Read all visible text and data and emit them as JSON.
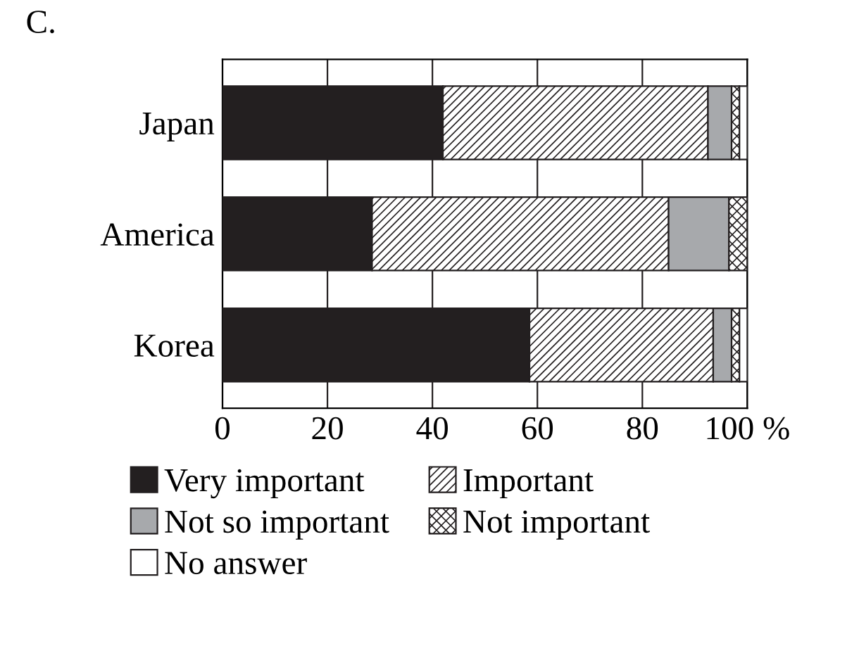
{
  "chart_data": {
    "type": "bar",
    "orientation": "horizontal",
    "stacked": true,
    "title": "C.",
    "categories": [
      "Japan",
      "America",
      "Korea"
    ],
    "series": [
      {
        "name": "Very important",
        "color": "#231f20",
        "values": [
          42,
          28.5,
          58.5
        ]
      },
      {
        "name": "Important",
        "color": "#231f20",
        "values": [
          50.5,
          56.5,
          35
        ]
      },
      {
        "name": "Not so important",
        "color": "#a7a9ac",
        "values": [
          4.5,
          11.5,
          3.5
        ]
      },
      {
        "name": "Not important",
        "color": "#231f20",
        "values": [
          1.5,
          3.5,
          1.5
        ]
      },
      {
        "name": "No answer",
        "color": "#ffffff",
        "values": [
          1.5,
          0,
          1.5
        ]
      }
    ],
    "xlim": [
      0,
      100
    ],
    "xticks": [
      0,
      20,
      40,
      60,
      80,
      {
        "value": 100,
        "label": "100 %"
      }
    ],
    "grid": "x",
    "legend": "bottom"
  }
}
